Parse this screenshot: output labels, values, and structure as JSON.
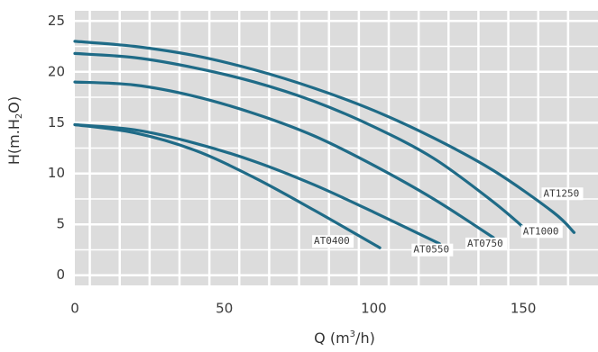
{
  "chart_data": {
    "type": "line",
    "title": "",
    "xlabel": {
      "main": "Q (m",
      "sup": "3",
      "rest": "/h)"
    },
    "ylabel": {
      "main": "H(m.H",
      "sub": "2",
      "rest": "O)"
    },
    "xlim": [
      0,
      175
    ],
    "ylim": [
      -1,
      26
    ],
    "x_ticks": [
      0,
      50,
      100,
      150
    ],
    "x_tick_labels": [
      "0",
      "50",
      "100",
      "150"
    ],
    "y_ticks": [
      0,
      5,
      10,
      15,
      20,
      25
    ],
    "y_tick_labels": [
      "0",
      "5",
      "10",
      "15",
      "20",
      "25"
    ],
    "grid": true,
    "legend": "none",
    "colors": {
      "plot_bg": "#dcdcdc",
      "grid": "#ffffff",
      "line": "#1f6b87"
    },
    "series": [
      {
        "name": "AT0400",
        "x": [
          0,
          20,
          40,
          60,
          80,
          102
        ],
        "y": [
          14.8,
          14.0,
          12.3,
          9.6,
          6.4,
          2.7
        ]
      },
      {
        "name": "AT0550",
        "x": [
          0,
          20,
          40,
          60,
          80,
          100,
          122
        ],
        "y": [
          14.8,
          14.3,
          13.0,
          11.2,
          8.9,
          6.2,
          3.1
        ]
      },
      {
        "name": "AT0750",
        "x": [
          0,
          20,
          40,
          60,
          80,
          100,
          120,
          140
        ],
        "y": [
          19.0,
          18.7,
          17.6,
          15.9,
          13.7,
          10.8,
          7.5,
          3.7
        ]
      },
      {
        "name": "AT1000",
        "x": [
          0,
          20,
          40,
          60,
          80,
          100,
          120,
          140,
          152
        ],
        "y": [
          21.8,
          21.4,
          20.4,
          19.0,
          17.1,
          14.6,
          11.5,
          7.2,
          4.2
        ]
      },
      {
        "name": "AT1250",
        "x": [
          0,
          20,
          40,
          60,
          80,
          100,
          120,
          140,
          160,
          167
        ],
        "y": [
          23.0,
          22.5,
          21.6,
          20.2,
          18.4,
          16.2,
          13.5,
          10.3,
          6.2,
          4.2
        ]
      }
    ]
  }
}
